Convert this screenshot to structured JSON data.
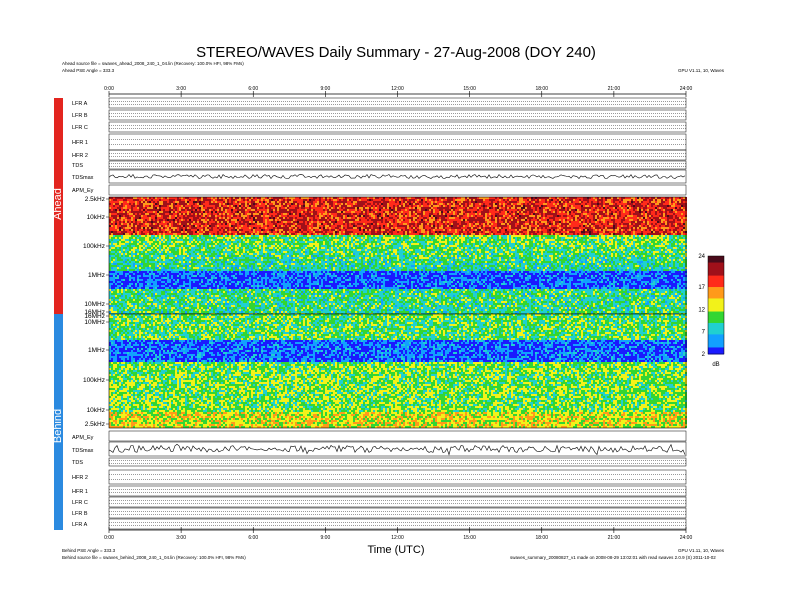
{
  "title": "STEREO/WAVES Daily Summary - 27-Aug-2008 (DOY 240)",
  "header": {
    "ahead_source": "Ahead source file = swaves_ahead_2008_240_1_04.lin (Recovery: 100.0% HFI, 98% FMs)",
    "ahead_angle": "Ahead PSE Angle = 333.3",
    "right_note": "GPU V1.11, 10, Waves"
  },
  "footer": {
    "behind_angle": "Behind PSE Angle = 333.3",
    "behind_source": "Behind source file = swaves_behind_2008_240_1_04.lin (Recovery: 100.0% HFI, 98% FMs)",
    "right_note": "GPU V1.11, 10, Waves",
    "right_file": "swaves_summary_20080827_v1 made on 2008-08-29 13:02:01 with read swaves 2.0.9 (S) 2011-10-02"
  },
  "bands": {
    "ahead": "Ahead",
    "behind": "Behind"
  },
  "chart_data": {
    "type": "heatmap",
    "title": "STEREO/WAVES Daily Summary - 27-Aug-2008 (DOY 240)",
    "xlabel": "Time (UTC)",
    "x_ticks": [
      "0:00",
      "3:00",
      "6:00",
      "9:00",
      "12:00",
      "15:00",
      "18:00",
      "21:00",
      "24:00"
    ],
    "x_range": [
      "0:00",
      "24:00"
    ],
    "ahead_rows": [
      "LFR A",
      "LFR B",
      "LFR C",
      "HFR 1",
      "HFR 2",
      "TDS",
      "TDSmax",
      "APM_Ey"
    ],
    "behind_rows": [
      "APM_Ey",
      "TDSmax",
      "TDS",
      "HFR 2",
      "HFR 1",
      "LFR C",
      "LFR B",
      "LFR A"
    ],
    "ahead_freq_ticks": [
      "2.5kHz",
      "10kHz",
      "100kHz",
      "1MHz",
      "10MHz",
      "16MHz"
    ],
    "behind_freq_ticks": [
      "16MHz",
      "10MHz",
      "1MHz",
      "100kHz",
      "10kHz",
      "2.5kHz"
    ],
    "colorbar": {
      "min": 2,
      "max": 24,
      "ticks": [
        2,
        7,
        12,
        17,
        24
      ],
      "unit": "dB"
    },
    "palette": [
      "#1a1aff",
      "#12a0ff",
      "#20d0d0",
      "#33d633",
      "#f2f21a",
      "#ff9a1a",
      "#ff2a1a",
      "#a0101a",
      "#4a0a1a"
    ]
  }
}
